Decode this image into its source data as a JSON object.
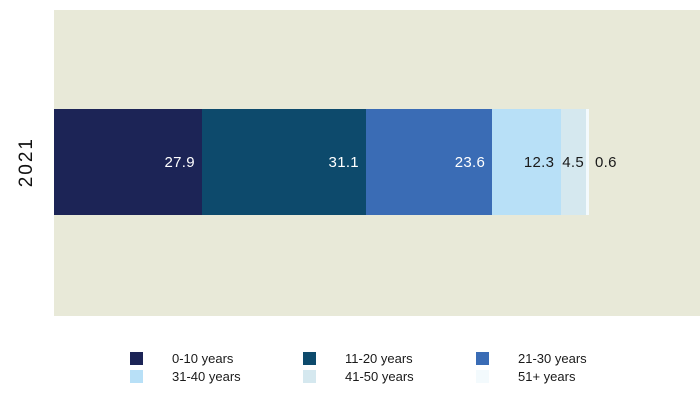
{
  "chart_data": {
    "type": "bar",
    "variant": "horizontal-stacked-100",
    "title": "",
    "categories": [
      "2021"
    ],
    "x_total": 100,
    "series": [
      {
        "name": "0-10 years",
        "value": 27.9,
        "color": "#1c2456",
        "label_color": "#ffffff"
      },
      {
        "name": "11-20 years",
        "value": 31.1,
        "color": "#0d4a6c",
        "label_color": "#ffffff"
      },
      {
        "name": "21-30 years",
        "value": 23.6,
        "color": "#3a6cb5",
        "label_color": "#ffffff"
      },
      {
        "name": "31-40 years",
        "value": 12.3,
        "color": "#b8e0f7",
        "label_color": "#1a1a1a"
      },
      {
        "name": "41-50 years",
        "value": 4.5,
        "color": "#d5e8ef",
        "label_color": "#1a1a1a"
      },
      {
        "name": "51+ years",
        "value": 0.6,
        "color": "#f3fafd",
        "label_color": "#1a1a1a",
        "label_outside": true
      }
    ],
    "plot_background": "#e8e9d8",
    "page_background": "#ffffff",
    "legend_position": "bottom",
    "legend_rows": 2,
    "legend_columns": 3,
    "grid": false
  }
}
